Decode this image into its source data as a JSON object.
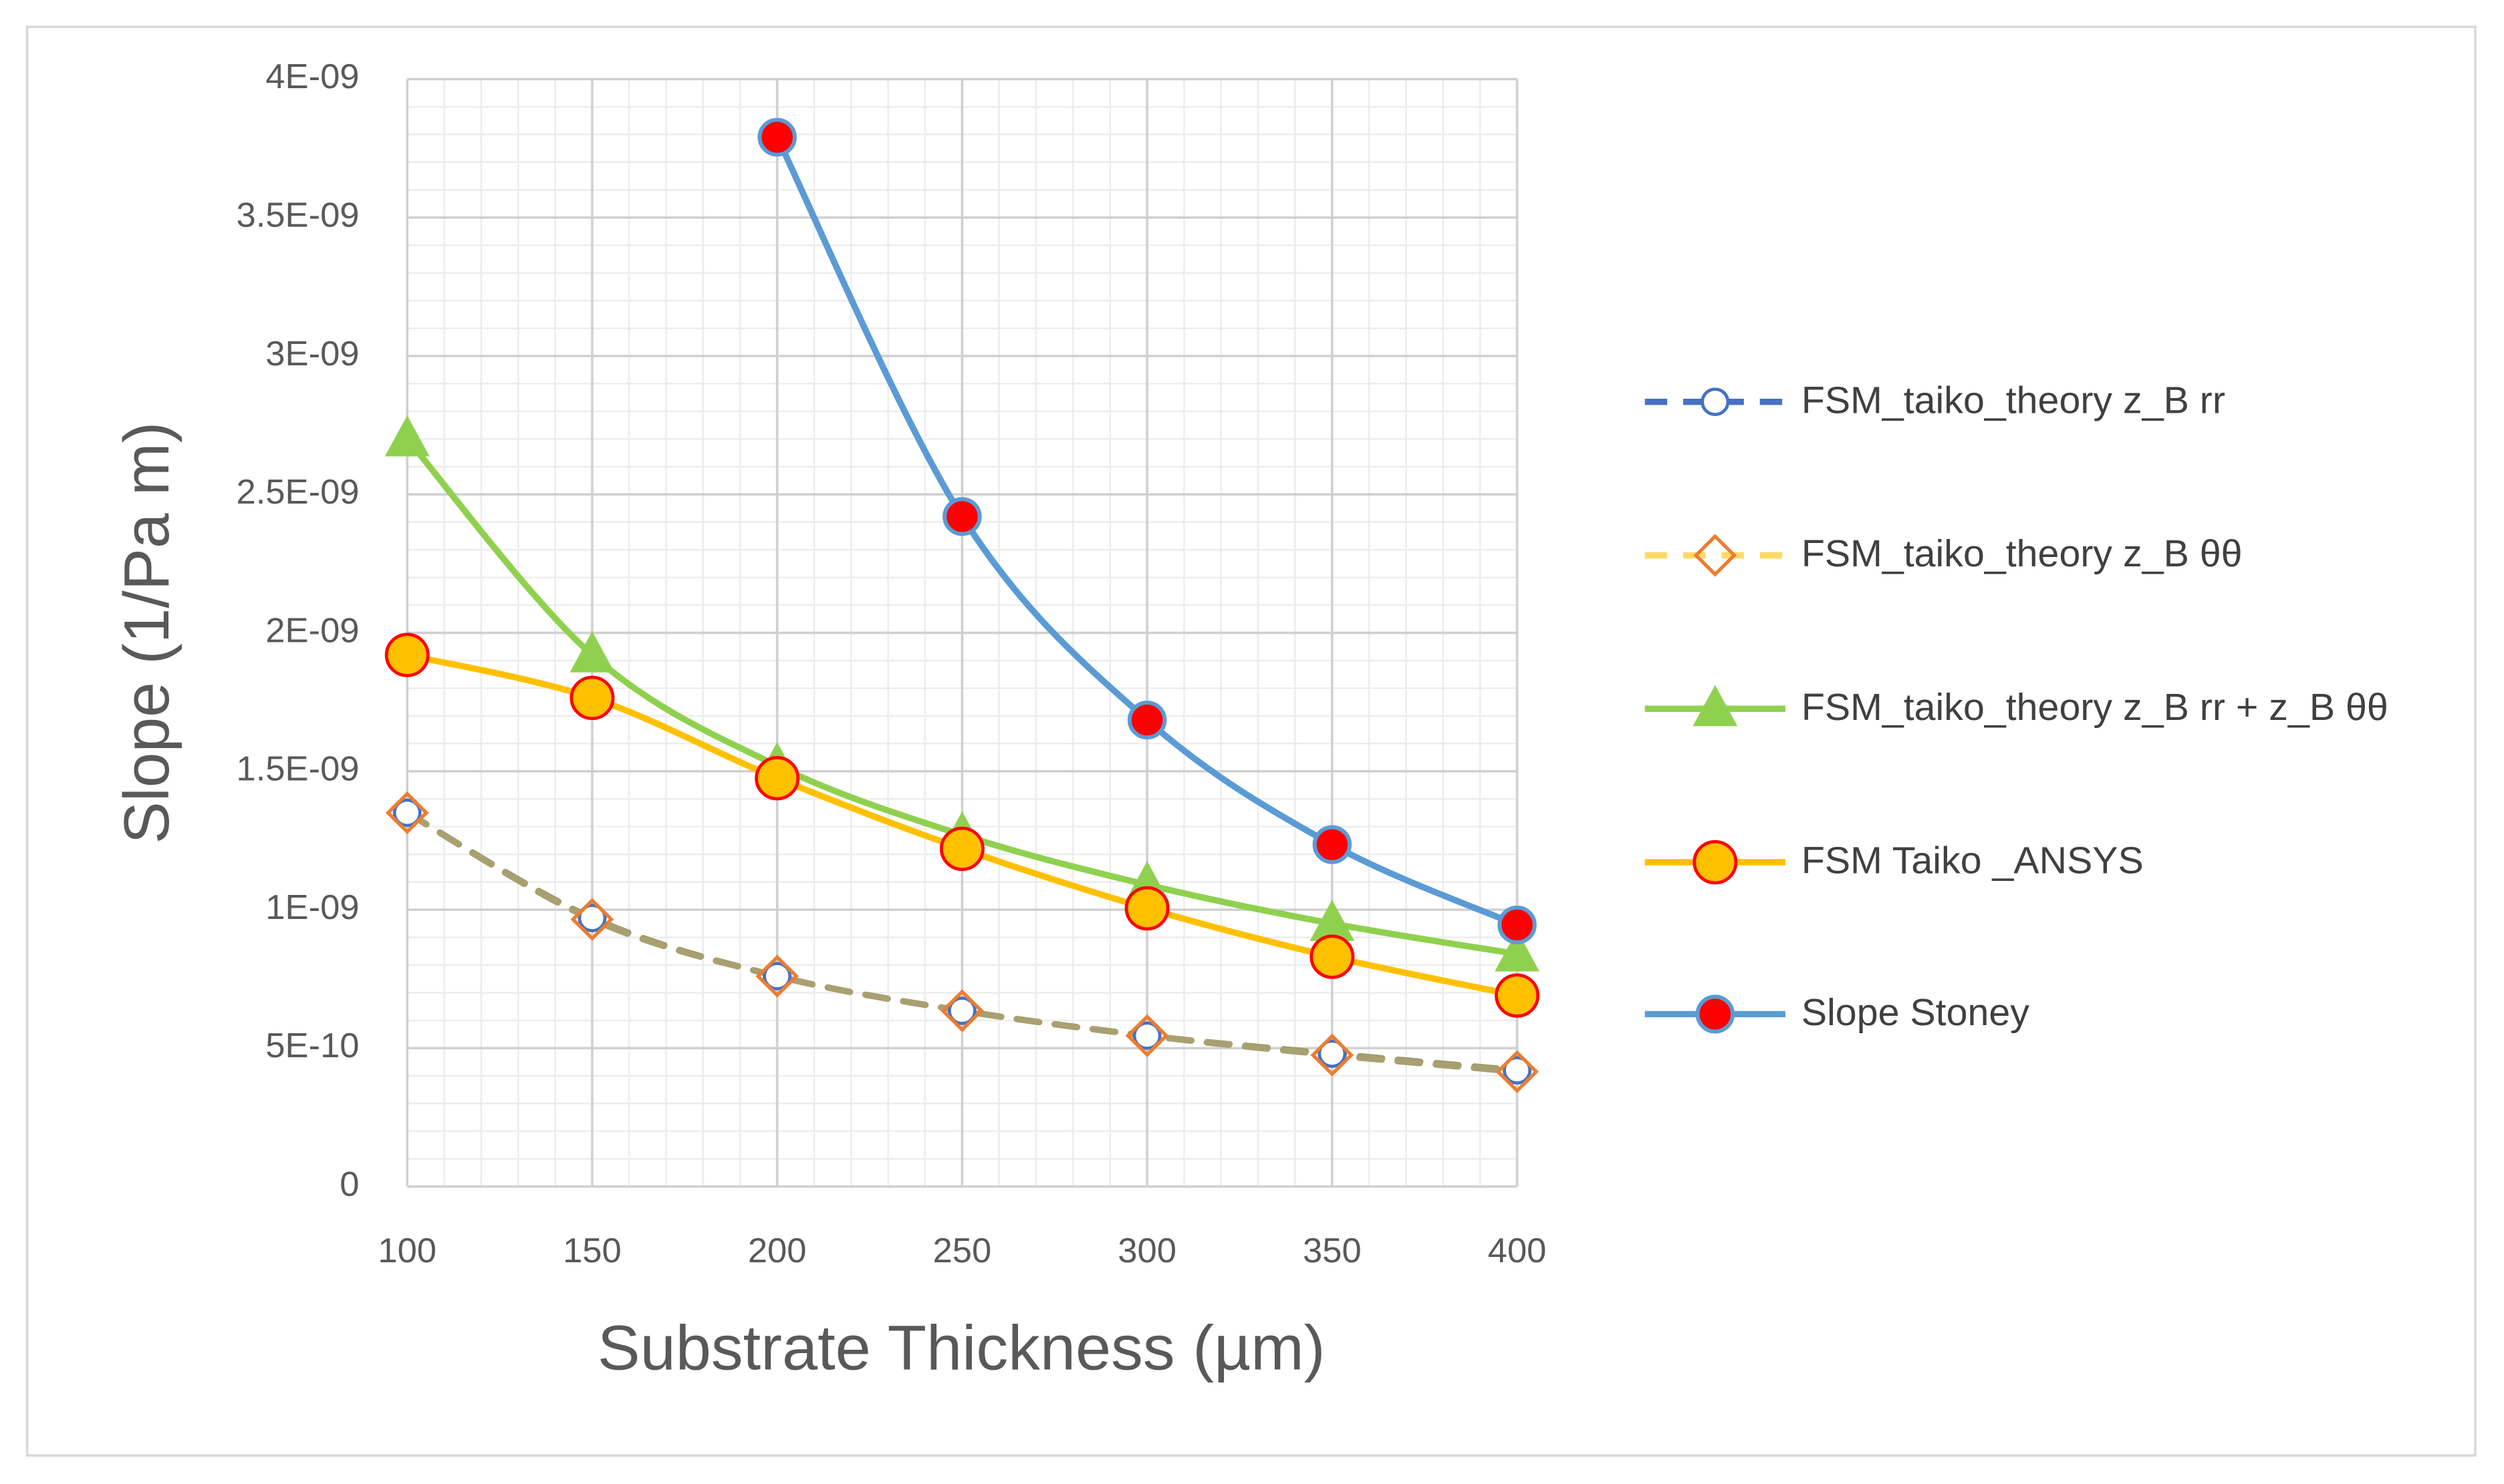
{
  "chart_data": {
    "type": "line",
    "x_label": "Substrate Thickness (µm)",
    "y_label": "Slope (1/Pa m)",
    "x": [
      100,
      150,
      200,
      250,
      300,
      350,
      400
    ],
    "xlim": [
      100,
      400
    ],
    "xticks": [
      100,
      150,
      200,
      250,
      300,
      350,
      400
    ],
    "ylim": [
      0,
      4e-09
    ],
    "yticks": [
      0,
      {
        "value": 5e-10,
        "label": "5E-10"
      },
      {
        "value": 1e-09,
        "label": "1E-09"
      },
      {
        "value": 1.5e-09,
        "label": "1.5E-09"
      },
      {
        "value": 2e-09,
        "label": "2E-09"
      },
      {
        "value": 2.5e-09,
        "label": "2.5E-09"
      },
      {
        "value": 3e-09,
        "label": "3E-09"
      },
      {
        "value": 3.5e-09,
        "label": "3.5E-09"
      },
      {
        "value": 4e-09,
        "label": "4E-09"
      }
    ],
    "grid": true,
    "minor_grid": true,
    "legend": "right",
    "series": [
      {
        "name": "FSM_taiko_theory z_B rr",
        "color": "#4472c4",
        "marker": "circle-open",
        "dashed": true,
        "values": [
          1.35e-09,
          9.7e-10,
          7.6e-10,
          6.35e-10,
          5.45e-10,
          4.8e-10,
          4.2e-10
        ]
      },
      {
        "name": "FSM_taiko_theory z_B θθ",
        "color": "#ffd966",
        "marker_color": "#ed7d31",
        "marker": "diamond-open",
        "dashed": true,
        "values": [
          1.35e-09,
          9.65e-10,
          7.6e-10,
          6.35e-10,
          5.45e-10,
          4.75e-10,
          4.15e-10
        ]
      },
      {
        "name": "FSM_taiko_theory z_B rr +  z_B θθ",
        "color": "#8fd14f",
        "marker": "triangle",
        "values": [
          2.7e-09,
          1.92e-09,
          1.52e-09,
          1.27e-09,
          1.09e-09,
          9.5e-10,
          8.4e-10
        ]
      },
      {
        "name": "FSM Taiko _ANSYS",
        "color": "#ffc000",
        "marker_color": "#ff0000",
        "marker": "circle-filled",
        "values": [
          1.92e-09,
          1.765e-09,
          1.475e-09,
          1.22e-09,
          1.005e-09,
          8.3e-10,
          6.9e-10
        ]
      },
      {
        "name": "Slope Stoney",
        "color": "#5b9bd5",
        "marker_color": "#ff0000",
        "marker": "circle-red",
        "values": [
          null,
          null,
          3.79e-09,
          2.42e-09,
          1.685e-09,
          1.235e-09,
          9.45e-10
        ]
      }
    ]
  }
}
